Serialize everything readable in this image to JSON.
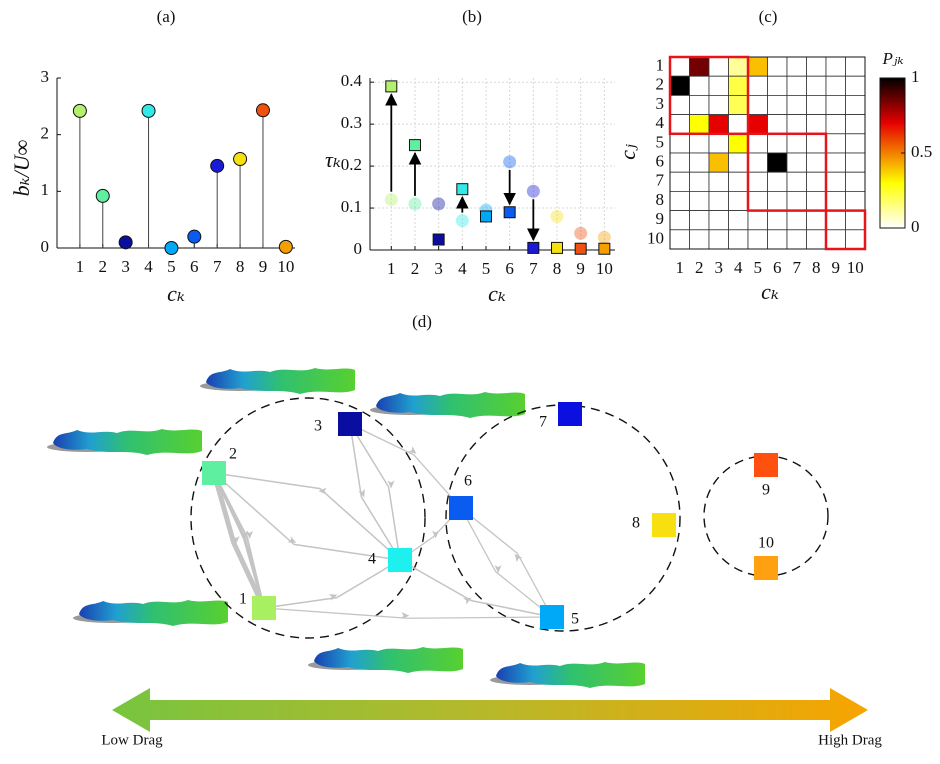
{
  "chart_data": [
    {
      "type": "stem",
      "title": "(a)",
      "x_label": "cₖ",
      "y_label": "bₖ/U∞",
      "x": [
        1,
        2,
        3,
        4,
        5,
        6,
        7,
        8,
        9,
        10
      ],
      "values": [
        2.42,
        0.92,
        0.1,
        2.42,
        0.0,
        0.2,
        1.45,
        1.57,
        2.43,
        0.02
      ],
      "colors": [
        "#b4f06e",
        "#5ef0a0",
        "#0a0ea0",
        "#33e8e8",
        "#00a8f8",
        "#0a5cf0",
        "#1a1ad8",
        "#f5e010",
        "#f05010",
        "#f5a000"
      ],
      "xlim": [
        0,
        10.4
      ],
      "ylim": [
        0,
        3
      ],
      "xticks": [
        1,
        2,
        3,
        4,
        5,
        6,
        7,
        8,
        9,
        10
      ],
      "yticks": [
        0,
        1,
        2,
        3
      ]
    },
    {
      "type": "scatter",
      "title": "(b)",
      "x_label": "cₖ",
      "y_label": "τₖ",
      "x": [
        1,
        2,
        3,
        4,
        5,
        6,
        7,
        8,
        9,
        10
      ],
      "series": [
        {
          "marker": "circle",
          "opacity": 0.4,
          "values": [
            0.12,
            0.11,
            0.11,
            0.07,
            0.095,
            0.21,
            0.14,
            0.08,
            0.04,
            0.03
          ]
        },
        {
          "marker": "square",
          "opacity": 1,
          "values": [
            0.39,
            0.25,
            0.025,
            0.145,
            0.08,
            0.09,
            0.005,
            0.005,
            0.003,
            0.003
          ]
        }
      ],
      "colors": [
        "#b4f06e",
        "#5ef0a0",
        "#0a0ea0",
        "#33e8e8",
        "#00a8f8",
        "#0a5cf0",
        "#1a1ad8",
        "#f5e010",
        "#f05010",
        "#f5a000"
      ],
      "arrows": [
        1,
        2,
        4,
        6,
        7
      ],
      "xlim": [
        0.1,
        10.45
      ],
      "ylim": [
        0,
        0.41
      ],
      "xticks": [
        1,
        2,
        3,
        4,
        5,
        6,
        7,
        8,
        9,
        10
      ],
      "yticks": [
        0,
        0.1,
        0.2,
        0.3,
        0.4
      ],
      "grid": true
    },
    {
      "type": "heatmap",
      "title": "(c)",
      "x_label": "cₖ",
      "y_label": "cⱼ",
      "colorbar_label": "Pⱼₖ",
      "categories": [
        1,
        2,
        3,
        4,
        5,
        6,
        7,
        8,
        9,
        10
      ],
      "values": [
        [
          0,
          0.85,
          0,
          0.12,
          0.4,
          0,
          0,
          0,
          0,
          0
        ],
        [
          1,
          0,
          0,
          0.22,
          0,
          0,
          0,
          0,
          0,
          0
        ],
        [
          0,
          0,
          0,
          0.2,
          0,
          0,
          0,
          0,
          0,
          0
        ],
        [
          0,
          0.3,
          0.7,
          0,
          0.7,
          0,
          0,
          0,
          0,
          0
        ],
        [
          0,
          0,
          0,
          0.3,
          0,
          0,
          0,
          0,
          0,
          0
        ],
        [
          0,
          0,
          0.4,
          0,
          0,
          1,
          0,
          0,
          0,
          0
        ],
        [
          0,
          0,
          0,
          0,
          0,
          0,
          0,
          0,
          0,
          0
        ],
        [
          0,
          0,
          0,
          0,
          0,
          0,
          0,
          0,
          0,
          0
        ],
        [
          0,
          0,
          0,
          0,
          0,
          0,
          0,
          0,
          0,
          0
        ],
        [
          0,
          0,
          0,
          0,
          0,
          0,
          0,
          0,
          0,
          0
        ]
      ],
      "clim": [
        0,
        1
      ],
      "colorbar_ticks": [
        0,
        0.5,
        1
      ],
      "groups": [
        [
          1,
          4
        ],
        [
          5,
          8
        ],
        [
          9,
          10
        ]
      ],
      "group_color": "#e8141c"
    }
  ],
  "network": {
    "title": "(d)",
    "nodes": [
      {
        "label": "1",
        "color": "#a8f060"
      },
      {
        "label": "2",
        "color": "#5ef0a0"
      },
      {
        "label": "3",
        "color": "#0a0ea0"
      },
      {
        "label": "4",
        "color": "#1ef0f0"
      },
      {
        "label": "5",
        "color": "#00a8f8"
      },
      {
        "label": "6",
        "color": "#0a5cf0"
      },
      {
        "label": "7",
        "color": "#0a10e0"
      },
      {
        "label": "8",
        "color": "#f8e010"
      },
      {
        "label": "9",
        "color": "#ff5010"
      },
      {
        "label": "10",
        "color": "#ffa010"
      }
    ],
    "low_label": "Low Drag",
    "high_label": "High Drag"
  }
}
